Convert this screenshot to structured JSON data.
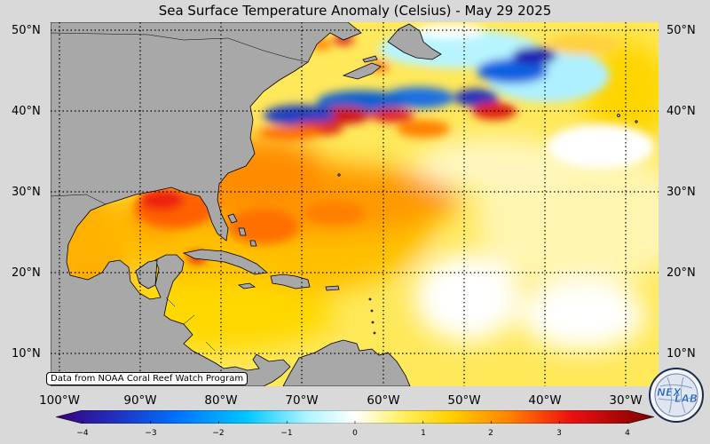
{
  "title": "Sea Surface Temperature Anomaly (Celsius) - May 29 2025",
  "lat_labels": [
    "50°N",
    "40°N",
    "30°N",
    "20°N",
    "10°N"
  ],
  "lon_labels": [
    "100°W",
    "90°W",
    "80°W",
    "70°W",
    "60°W",
    "50°W",
    "40°W",
    "30°W"
  ],
  "colorbar": {
    "ticks": [
      "−4",
      "−3",
      "−2",
      "−1",
      "0",
      "1",
      "2",
      "3",
      "4"
    ],
    "min": -4,
    "max": 4
  },
  "credit": "Data from NOAA Coral Reef Watch Program",
  "logo": {
    "text_top": "NEX",
    "text_bottom": "LAB",
    "icon": "globe-logo-icon"
  },
  "colors": {
    "land": "#a8a8a8",
    "warm_strong": "#e01010",
    "warm": "#ff8a00",
    "neutral_warm": "#ffe24a",
    "neutral": "#ffffff",
    "cool": "#00c0ff",
    "cool_strong": "#2020b0"
  }
}
